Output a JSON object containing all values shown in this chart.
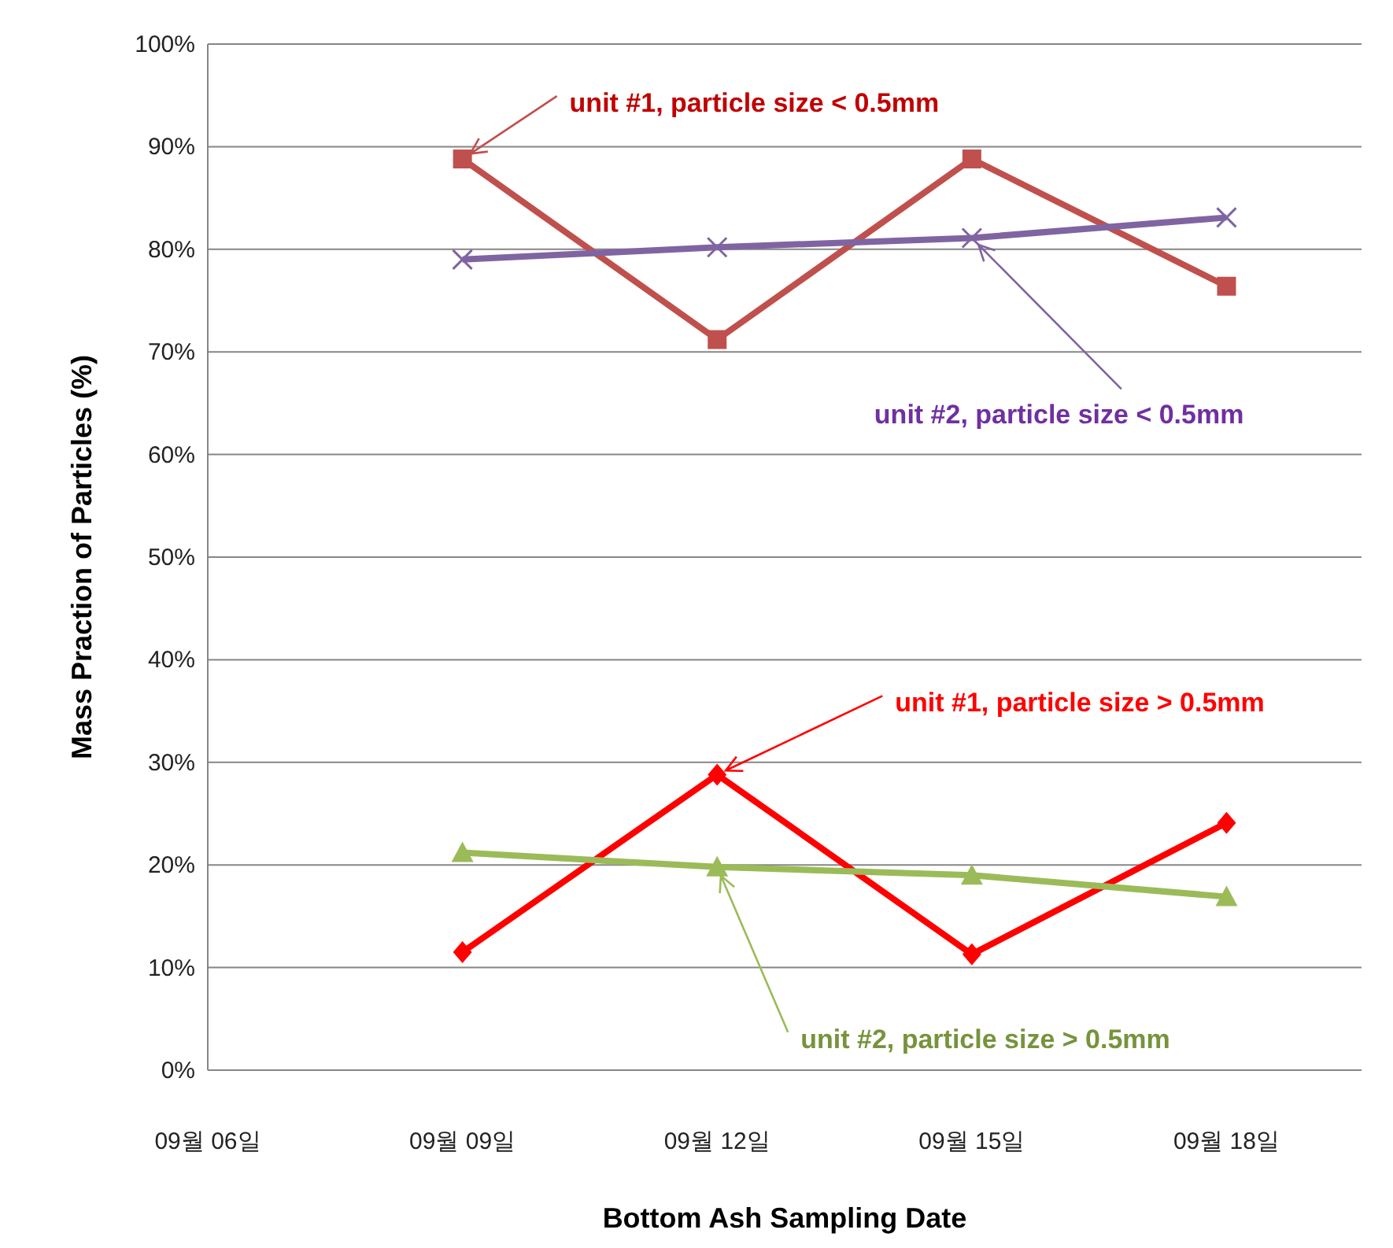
{
  "chart_data": {
    "type": "line",
    "xlabel": "Bottom Ash Sampling Date",
    "ylabel": "Mass Praction of Particles (%)",
    "categories": [
      "09월 06일",
      "09월 09일",
      "09월 12일",
      "09월 15일",
      "09월 18일"
    ],
    "series": [
      {
        "color": "#c0504d",
        "marker": "square",
        "values": [
          null,
          88.8,
          71.2,
          88.8,
          76.4
        ]
      },
      {
        "color": "#8064a2",
        "marker": "cross",
        "values": [
          null,
          79.0,
          80.2,
          81.1,
          83.1
        ]
      },
      {
        "color": "#ff0000",
        "marker": "diamond",
        "values": [
          null,
          11.5,
          28.8,
          11.3,
          24.1
        ]
      },
      {
        "color": "#9bbb59",
        "marker": "triangle",
        "values": [
          null,
          21.2,
          19.8,
          19.0,
          16.9
        ]
      }
    ],
    "ylim": [
      0,
      100
    ],
    "yticks": [
      {
        "value": 0,
        "label": "0%"
      },
      {
        "value": 10,
        "label": "10%"
      },
      {
        "value": 20,
        "label": "20%"
      },
      {
        "value": 30,
        "label": "30%"
      },
      {
        "value": 40,
        "label": "40%"
      },
      {
        "value": 50,
        "label": "50%"
      },
      {
        "value": 60,
        "label": "60%"
      },
      {
        "value": 70,
        "label": "70%"
      },
      {
        "value": 80,
        "label": "80%"
      },
      {
        "value": 90,
        "label": "90%"
      },
      {
        "value": 100,
        "label": "100%"
      }
    ],
    "grid": "y",
    "line_style": "solid",
    "annotations": [
      {
        "text": "unit #1, particle size < 0.5mm",
        "x": "09월 09일",
        "y": 88.8
      },
      {
        "text": "unit #2, particle size < 0.5mm",
        "x": "09월 15일",
        "y": 81.1
      },
      {
        "text": "unit #1, particle size > 0.5mm",
        "x": "09월 12일",
        "y": 28.8
      },
      {
        "text": "unit #2, particle size > 0.5mm",
        "x": "09월 12일",
        "y": 19.8
      }
    ]
  }
}
